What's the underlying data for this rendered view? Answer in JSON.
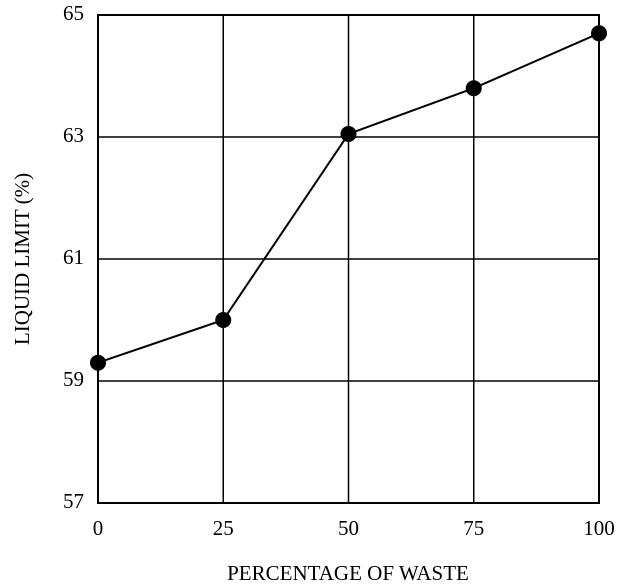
{
  "chart_data": {
    "type": "line",
    "x_label": "PERCENTAGE OF WASTE",
    "y_label": "LIQUID LIMIT (%)",
    "x": [
      0,
      25,
      50,
      75,
      100
    ],
    "series": [
      {
        "color": "#000000",
        "values": [
          59.3,
          60,
          63.05,
          63.8,
          64.7
        ]
      }
    ],
    "xlim": [
      0,
      100
    ],
    "xticks": [
      0,
      25,
      50,
      75,
      100
    ],
    "ylim": [
      57,
      65
    ],
    "yticks": [
      57,
      59,
      61,
      63,
      65
    ],
    "grid": true
  }
}
